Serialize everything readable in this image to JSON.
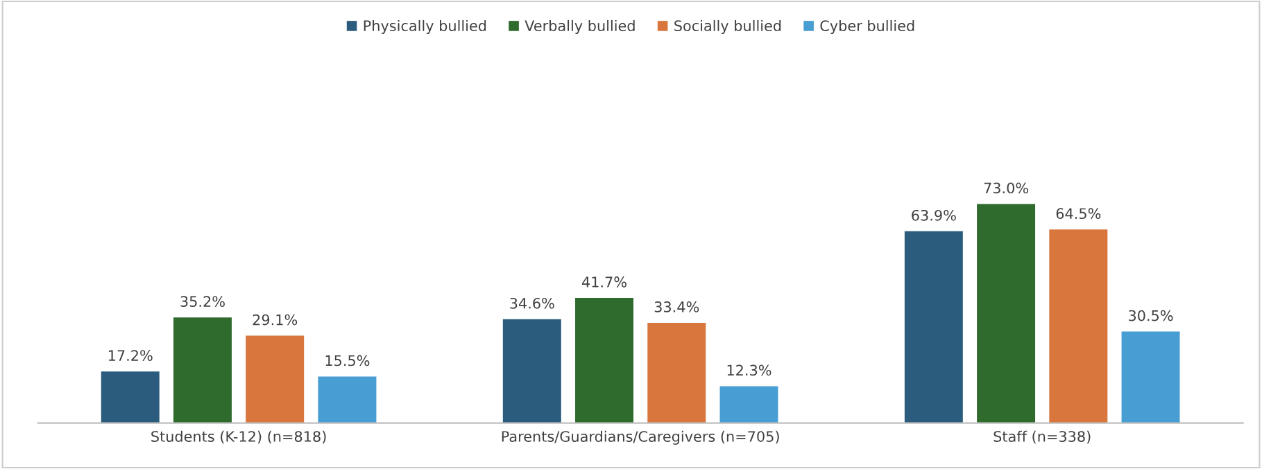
{
  "chart_data": {
    "type": "bar",
    "categories": [
      "Students (K-12) (n=818)",
      "Parents/Guardians/Caregivers (n=705)",
      "Staff (n=338)"
    ],
    "series": [
      {
        "name": "Physically bullied",
        "color": "#2b5b7d",
        "values": [
          17.2,
          34.6,
          63.9
        ],
        "value_labels": [
          "17.2%",
          "34.6%",
          "63.9%"
        ]
      },
      {
        "name": "Verbally bullied",
        "color": "#2f6b2d",
        "values": [
          35.2,
          41.7,
          73.0
        ],
        "value_labels": [
          "35.2%",
          "41.7%",
          "73.0%"
        ]
      },
      {
        "name": "Socially bullied",
        "color": "#d8763e",
        "values": [
          29.1,
          33.4,
          64.5
        ],
        "value_labels": [
          "29.1%",
          "33.4%",
          "64.5%"
        ]
      },
      {
        "name": "Cyber bullied",
        "color": "#489dd3",
        "values": [
          15.5,
          12.3,
          30.5
        ],
        "value_labels": [
          "15.5%",
          "12.3%",
          "30.5%"
        ]
      }
    ],
    "legend": "top"
  }
}
